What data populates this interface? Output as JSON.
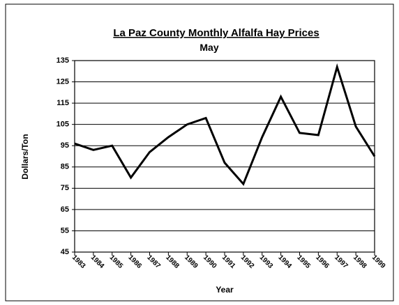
{
  "chart_data": {
    "type": "line",
    "title": "La Paz County Monthly Alfalfa Hay Prices",
    "subtitle": "May",
    "x_label": "Year",
    "y_label": "Dollars/Ton",
    "categories": [
      "1983",
      "1984",
      "1985",
      "1986",
      "1987",
      "1988",
      "1989",
      "1990",
      "1991",
      "1992",
      "1993",
      "1994",
      "1995",
      "1996",
      "1997",
      "1998",
      "1999"
    ],
    "values": [
      96,
      93,
      95,
      80,
      92,
      99,
      105,
      108,
      87,
      77,
      99,
      118,
      101,
      100,
      132,
      104,
      90
    ],
    "color": "#000000",
    "ylim": [
      45,
      135
    ],
    "yticks": [
      45,
      55,
      65,
      75,
      85,
      95,
      105,
      115,
      125,
      135
    ],
    "grid": true
  }
}
